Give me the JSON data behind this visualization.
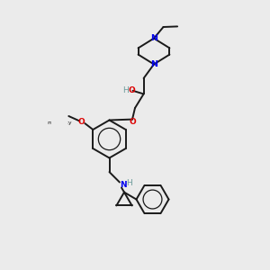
{
  "background_color": "#ebebeb",
  "bond_color": "#1a1a1a",
  "nitrogen_color": "#0000ee",
  "oxygen_color": "#dd0000",
  "hydrogen_color": "#6a9a9a",
  "bond_width": 1.4,
  "fig_width": 3.0,
  "fig_height": 3.0,
  "dpi": 100,
  "xlim": [
    0,
    10
  ],
  "ylim": [
    0,
    10
  ]
}
